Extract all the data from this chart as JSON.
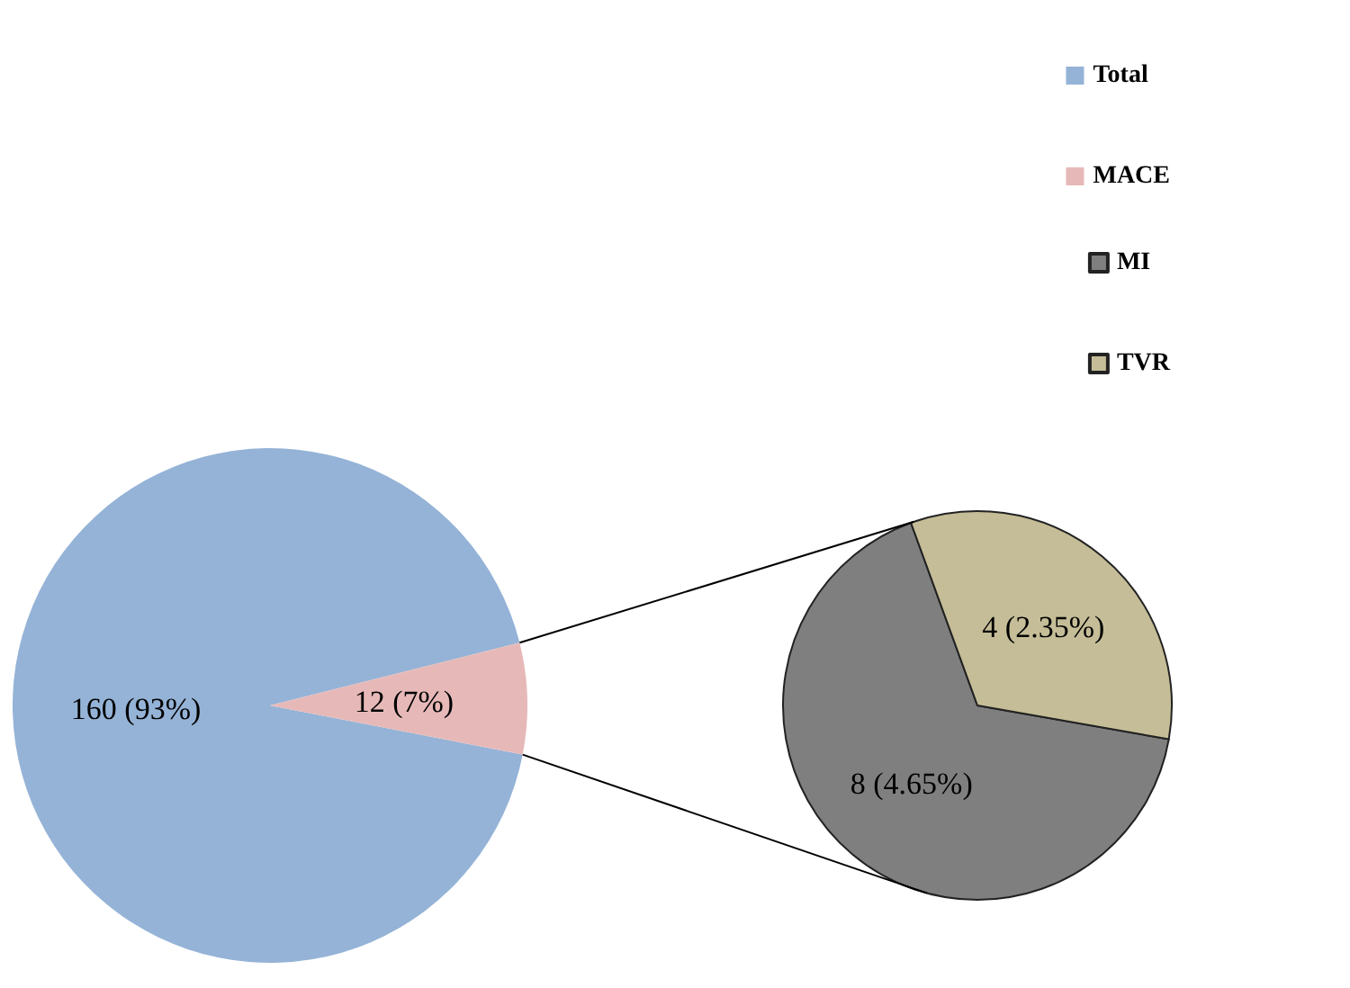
{
  "chart_data": [
    {
      "type": "pie",
      "categories": [
        "Total",
        "MACE"
      ],
      "values": [
        160,
        12
      ],
      "colors": [
        "#95b3d7",
        "#e6b9b8"
      ],
      "value_labels": [
        "160 (93%)",
        "12 (7%)"
      ],
      "legend": "top right"
    },
    {
      "type": "pie",
      "categories": [
        "MI",
        "TVR"
      ],
      "values": [
        8,
        4
      ],
      "colors": [
        "#7f7f7f",
        "#c4bd97"
      ],
      "value_labels": [
        "8 (4.65%)",
        "4 (2.35%)"
      ],
      "legend": "top right"
    }
  ]
}
